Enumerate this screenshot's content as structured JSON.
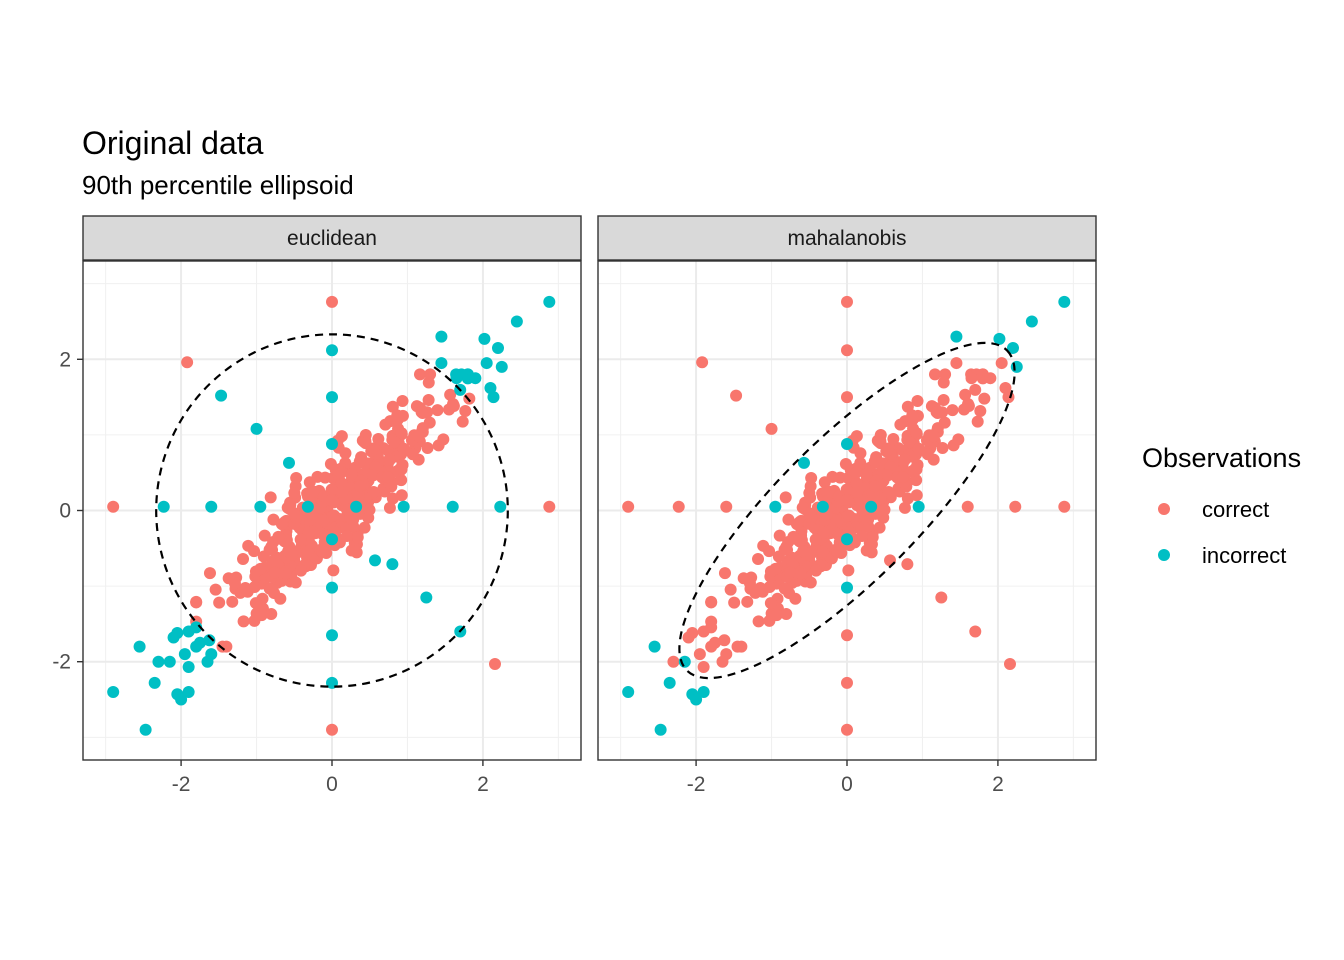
{
  "chart_data": {
    "type": "scatter",
    "title": "Original data",
    "subtitle": "90th percentile ellipsoid",
    "xlim": [
      -3.3,
      3.3
    ],
    "ylim": [
      -3.3,
      3.3
    ],
    "x_ticks": [
      -2,
      0,
      2
    ],
    "y_ticks": [
      -2,
      0,
      2
    ],
    "x_tick_labels": [
      "-2",
      "0",
      "2"
    ],
    "y_tick_labels": [
      "-2",
      "0",
      "2"
    ],
    "grid": true,
    "legend": {
      "title": "Observations",
      "position": "right",
      "entries": [
        {
          "label": "correct",
          "color": "#F8766D"
        },
        {
          "label": "incorrect",
          "color": "#00BFC4"
        }
      ]
    },
    "panels": [
      {
        "label": "euclidean",
        "ellipse": {
          "center": [
            0.0,
            0.0
          ],
          "rx": 2.33,
          "ry": 2.33,
          "angle": 0
        }
      },
      {
        "label": "mahalanobis",
        "ellipse": {
          "center": [
            0.0,
            0.0
          ],
          "rx": 3.0,
          "ry": 0.93,
          "angle": 45
        }
      }
    ],
    "cloud": {
      "description_free": true,
      "n": 420,
      "mean": [
        0,
        0
      ],
      "rho": 0.9,
      "sd": 0.75
    },
    "special_points": [
      {
        "x": 0.0,
        "y": 2.76,
        "euclidean": "correct",
        "mahalanobis": "correct"
      },
      {
        "x": 0.0,
        "y": 2.12,
        "euclidean": "incorrect",
        "mahalanobis": "correct"
      },
      {
        "x": 0.0,
        "y": 1.5,
        "euclidean": "incorrect",
        "mahalanobis": "correct"
      },
      {
        "x": 0.0,
        "y": 0.88,
        "euclidean": "incorrect",
        "mahalanobis": "incorrect"
      },
      {
        "x": 0.0,
        "y": -0.38,
        "euclidean": "incorrect",
        "mahalanobis": "incorrect"
      },
      {
        "x": 0.0,
        "y": -1.02,
        "euclidean": "incorrect",
        "mahalanobis": "incorrect"
      },
      {
        "x": 0.0,
        "y": -1.65,
        "euclidean": "incorrect",
        "mahalanobis": "correct"
      },
      {
        "x": 0.0,
        "y": -2.28,
        "euclidean": "incorrect",
        "mahalanobis": "correct"
      },
      {
        "x": 0.0,
        "y": -2.9,
        "euclidean": "correct",
        "mahalanobis": "correct"
      },
      {
        "x": -2.9,
        "y": 0.05,
        "euclidean": "correct",
        "mahalanobis": "correct"
      },
      {
        "x": -2.23,
        "y": 0.05,
        "euclidean": "incorrect",
        "mahalanobis": "correct"
      },
      {
        "x": -1.6,
        "y": 0.05,
        "euclidean": "incorrect",
        "mahalanobis": "correct"
      },
      {
        "x": -0.95,
        "y": 0.05,
        "euclidean": "incorrect",
        "mahalanobis": "incorrect"
      },
      {
        "x": -0.32,
        "y": 0.05,
        "euclidean": "incorrect",
        "mahalanobis": "incorrect"
      },
      {
        "x": 0.32,
        "y": 0.05,
        "euclidean": "incorrect",
        "mahalanobis": "incorrect"
      },
      {
        "x": 0.95,
        "y": 0.05,
        "euclidean": "incorrect",
        "mahalanobis": "incorrect"
      },
      {
        "x": 1.6,
        "y": 0.05,
        "euclidean": "incorrect",
        "mahalanobis": "correct"
      },
      {
        "x": 2.23,
        "y": 0.05,
        "euclidean": "incorrect",
        "mahalanobis": "correct"
      },
      {
        "x": 2.88,
        "y": 0.05,
        "euclidean": "correct",
        "mahalanobis": "correct"
      },
      {
        "x": -1.92,
        "y": 1.96,
        "euclidean": "correct",
        "mahalanobis": "correct"
      },
      {
        "x": -1.47,
        "y": 1.52,
        "euclidean": "incorrect",
        "mahalanobis": "correct"
      },
      {
        "x": -1.0,
        "y": 1.08,
        "euclidean": "incorrect",
        "mahalanobis": "correct"
      },
      {
        "x": -0.57,
        "y": 0.63,
        "euclidean": "incorrect",
        "mahalanobis": "incorrect"
      },
      {
        "x": 0.57,
        "y": -0.66,
        "euclidean": "incorrect",
        "mahalanobis": "correct"
      },
      {
        "x": 0.8,
        "y": -0.71,
        "euclidean": "incorrect",
        "mahalanobis": "correct"
      },
      {
        "x": 1.25,
        "y": -1.15,
        "euclidean": "incorrect",
        "mahalanobis": "correct"
      },
      {
        "x": 1.7,
        "y": -1.6,
        "euclidean": "incorrect",
        "mahalanobis": "correct"
      },
      {
        "x": 2.16,
        "y": -2.03,
        "euclidean": "correct",
        "mahalanobis": "correct"
      },
      {
        "x": 1.45,
        "y": 2.3,
        "euclidean": "incorrect",
        "mahalanobis": "incorrect"
      },
      {
        "x": 2.02,
        "y": 2.27,
        "euclidean": "incorrect",
        "mahalanobis": "incorrect"
      },
      {
        "x": 2.2,
        "y": 2.15,
        "euclidean": "incorrect",
        "mahalanobis": "incorrect"
      },
      {
        "x": 2.45,
        "y": 2.5,
        "euclidean": "incorrect",
        "mahalanobis": "incorrect"
      },
      {
        "x": 2.88,
        "y": 2.76,
        "euclidean": "incorrect",
        "mahalanobis": "incorrect"
      },
      {
        "x": 2.05,
        "y": 1.95,
        "euclidean": "incorrect",
        "mahalanobis": "correct"
      },
      {
        "x": 2.25,
        "y": 1.9,
        "euclidean": "incorrect",
        "mahalanobis": "incorrect"
      },
      {
        "x": 1.9,
        "y": 1.75,
        "euclidean": "incorrect",
        "mahalanobis": "correct"
      },
      {
        "x": 1.65,
        "y": 1.75,
        "euclidean": "incorrect",
        "mahalanobis": "correct"
      },
      {
        "x": 1.82,
        "y": 1.48,
        "euclidean": "correct",
        "mahalanobis": "correct"
      },
      {
        "x": 2.1,
        "y": 1.62,
        "euclidean": "incorrect",
        "mahalanobis": "correct"
      },
      {
        "x": 2.14,
        "y": 1.5,
        "euclidean": "incorrect",
        "mahalanobis": "correct"
      },
      {
        "x": 1.45,
        "y": 1.95,
        "euclidean": "incorrect",
        "mahalanobis": "correct"
      },
      {
        "x": 1.3,
        "y": 1.8,
        "euclidean": "correct",
        "mahalanobis": "correct"
      },
      {
        "x": -2.55,
        "y": -1.8,
        "euclidean": "incorrect",
        "mahalanobis": "incorrect"
      },
      {
        "x": -2.9,
        "y": -2.4,
        "euclidean": "incorrect",
        "mahalanobis": "incorrect"
      },
      {
        "x": -2.47,
        "y": -2.9,
        "euclidean": "incorrect",
        "mahalanobis": "incorrect"
      },
      {
        "x": -2.35,
        "y": -2.28,
        "euclidean": "incorrect",
        "mahalanobis": "incorrect"
      },
      {
        "x": -2.3,
        "y": -2.0,
        "euclidean": "incorrect",
        "mahalanobis": "correct"
      },
      {
        "x": -2.15,
        "y": -2.0,
        "euclidean": "incorrect",
        "mahalanobis": "incorrect"
      },
      {
        "x": -2.05,
        "y": -2.43,
        "euclidean": "incorrect",
        "mahalanobis": "incorrect"
      },
      {
        "x": -2.0,
        "y": -2.5,
        "euclidean": "incorrect",
        "mahalanobis": "incorrect"
      },
      {
        "x": -1.9,
        "y": -2.4,
        "euclidean": "incorrect",
        "mahalanobis": "incorrect"
      },
      {
        "x": -2.05,
        "y": -1.62,
        "euclidean": "incorrect",
        "mahalanobis": "correct"
      },
      {
        "x": -1.95,
        "y": -1.9,
        "euclidean": "incorrect",
        "mahalanobis": "correct"
      },
      {
        "x": -1.9,
        "y": -1.6,
        "euclidean": "incorrect",
        "mahalanobis": "correct"
      },
      {
        "x": -1.75,
        "y": -1.75,
        "euclidean": "incorrect",
        "mahalanobis": "correct"
      },
      {
        "x": -1.6,
        "y": -1.9,
        "euclidean": "incorrect",
        "mahalanobis": "correct"
      },
      {
        "x": -1.65,
        "y": -2.0,
        "euclidean": "incorrect",
        "mahalanobis": "correct"
      },
      {
        "x": -1.9,
        "y": -2.07,
        "euclidean": "incorrect",
        "mahalanobis": "correct"
      },
      {
        "x": -2.1,
        "y": -1.68,
        "euclidean": "incorrect",
        "mahalanobis": "correct"
      },
      {
        "x": -1.4,
        "y": -1.8,
        "euclidean": "correct",
        "mahalanobis": "correct"
      }
    ]
  }
}
